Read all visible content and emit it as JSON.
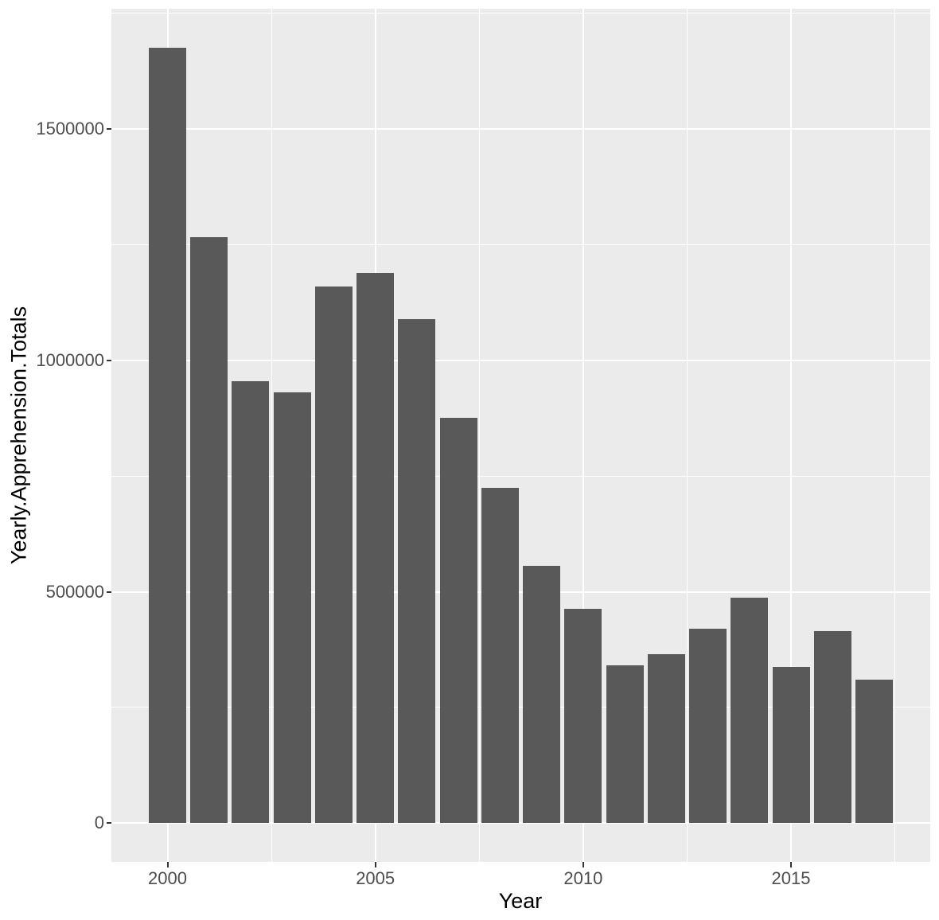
{
  "chart_data": {
    "type": "bar",
    "title": "",
    "xlabel": "Year",
    "ylabel": "Yearly.Apprehension.Totals",
    "categories": [
      2000,
      2001,
      2002,
      2003,
      2004,
      2005,
      2006,
      2007,
      2008,
      2009,
      2010,
      2011,
      2012,
      2013,
      2014,
      2015,
      2016,
      2017
    ],
    "values": [
      1676438,
      1266214,
      955310,
      931557,
      1160395,
      1189075,
      1089092,
      876704,
      723825,
      556041,
      463382,
      340252,
      364768,
      420789,
      486651,
      337117,
      415816,
      310531
    ],
    "series": [
      {
        "name": "Yearly.Apprehension.Totals",
        "values": [
          1676438,
          1266214,
          955310,
          931557,
          1160395,
          1189075,
          1089092,
          876704,
          723825,
          556041,
          463382,
          340252,
          364768,
          420789,
          486651,
          337117,
          415816,
          310531
        ]
      }
    ],
    "x_major_ticks": [
      2000,
      2005,
      2010,
      2015
    ],
    "x_major_tick_labels": [
      "2000",
      "2005",
      "2010",
      "2015"
    ],
    "x_minor_ticks": [
      2002.5,
      2007.5,
      2012.5,
      2017.5
    ],
    "y_major_ticks": [
      0,
      500000,
      1000000,
      1500000
    ],
    "y_major_tick_labels": [
      "0",
      "500000",
      "1000000",
      "1500000"
    ],
    "y_minor_ticks": [
      250000,
      750000,
      1250000,
      1750000
    ],
    "xlim": [
      1998.65,
      2018.35
    ],
    "ylim": [
      -83822,
      1760260
    ],
    "bar_width_years": 0.9,
    "grid": true,
    "legend": false,
    "style": "ggplot2-grey-theme",
    "colors": {
      "bar_fill": "#595959",
      "panel_bg": "#ebebeb",
      "grid_line": "#ffffff",
      "tick_text": "#4d4d4d",
      "axis_title_text": "#000000",
      "tick_mark": "#333333",
      "outer_bg": "#ffffff"
    }
  }
}
